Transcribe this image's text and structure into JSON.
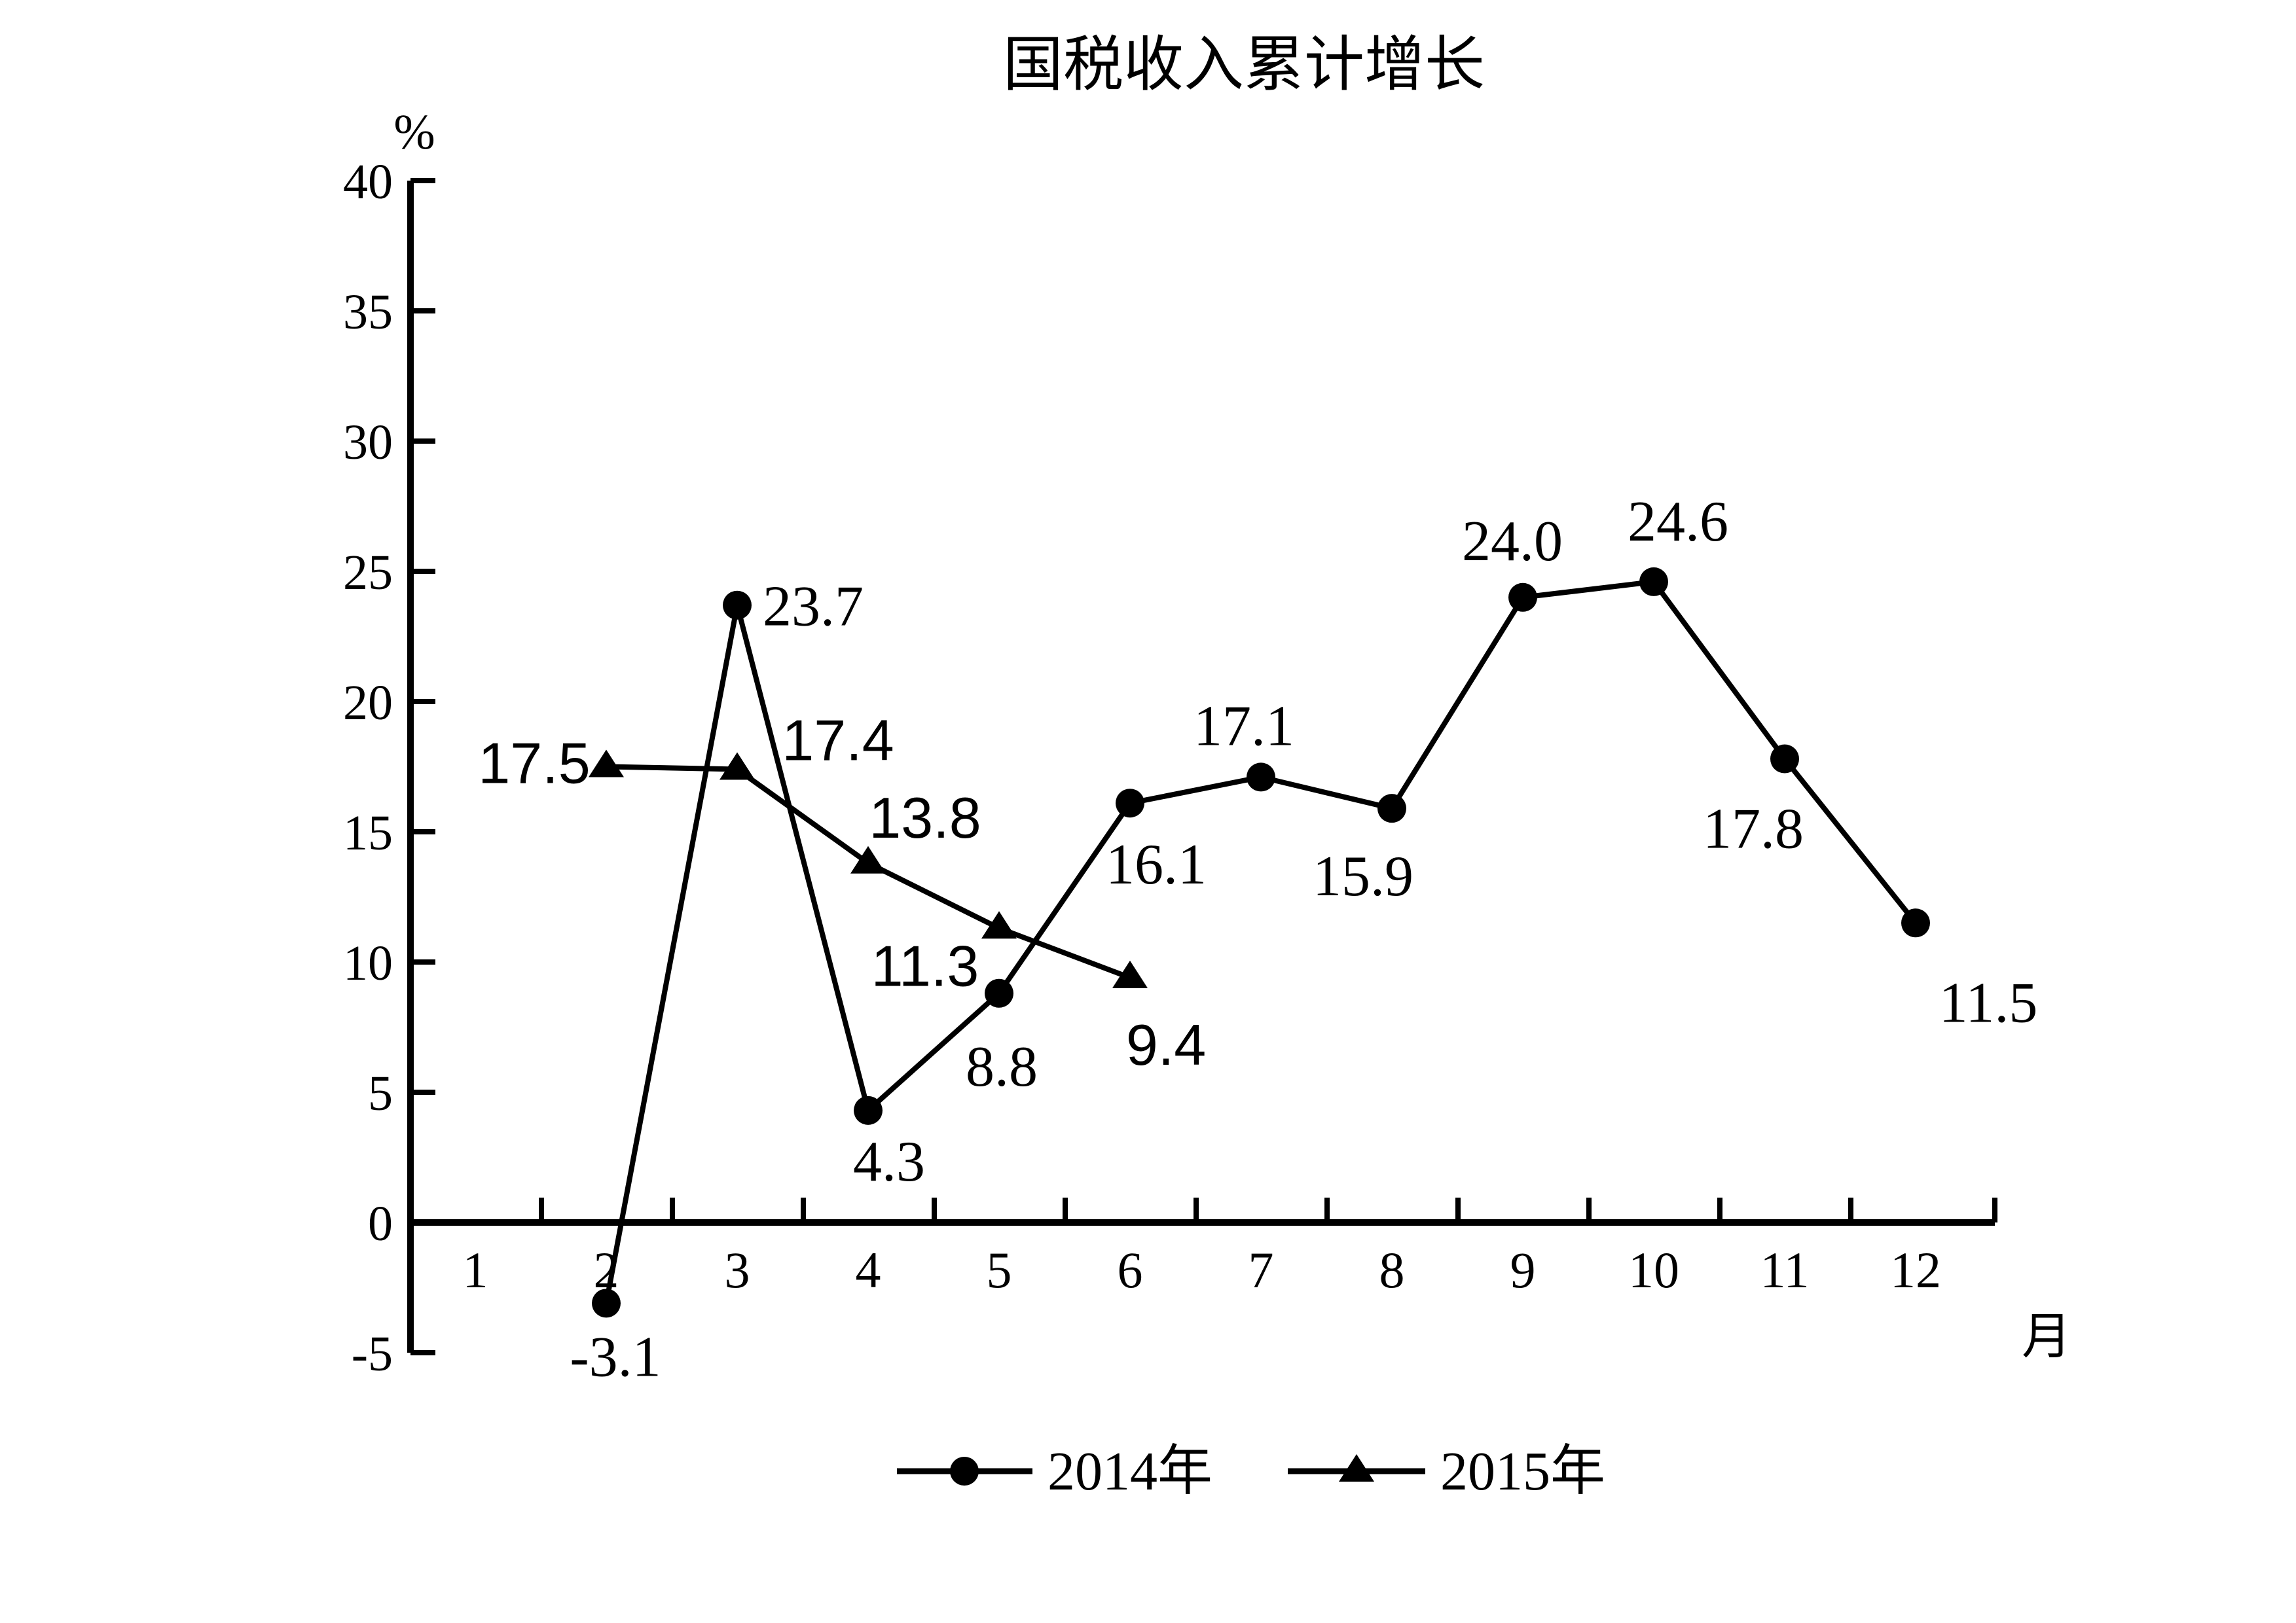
{
  "page": {
    "background": "#ffffff",
    "ink": "#000000"
  },
  "title": "国税收入累计增长",
  "axes": {
    "y_unit_label": "%",
    "x_unit_label": "月",
    "y_ticks": [
      40,
      35,
      30,
      25,
      20,
      15,
      10,
      5,
      0,
      -5
    ],
    "x_ticks": [
      1,
      2,
      3,
      4,
      5,
      6,
      7,
      8,
      9,
      10,
      11,
      12
    ]
  },
  "legend": {
    "items": [
      {
        "label": "2014年",
        "marker": "circle-icon"
      },
      {
        "label": "2015年",
        "marker": "triangle-icon"
      }
    ]
  },
  "chart_data": {
    "type": "line",
    "title": "国税收入累计增长",
    "xlabel": "月",
    "ylabel": "%",
    "ylim": [
      -5,
      40
    ],
    "x_range": [
      1,
      12
    ],
    "grid": false,
    "legend_position": "bottom-center",
    "x": [
      1,
      2,
      3,
      4,
      5,
      6,
      7,
      8,
      9,
      10,
      11,
      12
    ],
    "series": [
      {
        "name": "2014年",
        "marker": "circle",
        "label_font": "serif",
        "points": [
          {
            "month": 2,
            "value": -3.1,
            "label": "-3.1",
            "dx": 14,
            "dy": 80
          },
          {
            "month": 3,
            "value": 23.7,
            "label": "23.7",
            "dx": 116,
            "dy": 0
          },
          {
            "month": 4,
            "value": 4.3,
            "label": "4.3",
            "dx": 32,
            "dy": 76
          },
          {
            "month": 5,
            "value": 8.8,
            "label": "8.8",
            "dx": 4,
            "dy": 110
          },
          {
            "month": 6,
            "value": 16.1,
            "label": "16.1",
            "dx": 40,
            "dy": 92
          },
          {
            "month": 7,
            "value": 17.1,
            "label": "17.1",
            "dx": -26,
            "dy": -80
          },
          {
            "month": 8,
            "value": 15.9,
            "label": "15.9",
            "dx": -44,
            "dy": 102
          },
          {
            "month": 9,
            "value": 24.0,
            "label": "24.0",
            "dx": -16,
            "dy": -88
          },
          {
            "month": 10,
            "value": 24.6,
            "label": "24.6",
            "dx": 37,
            "dy": -94
          },
          {
            "month": 11,
            "value": 17.8,
            "label": "17.8",
            "dx": -48,
            "dy": 105
          },
          {
            "month": 12,
            "value": 11.5,
            "label": "11.5",
            "dx": 111,
            "dy": 120
          }
        ]
      },
      {
        "name": "2015年",
        "marker": "triangle",
        "label_font": "sans",
        "points": [
          {
            "month": 2,
            "value": 17.5,
            "label": "17.5",
            "dx": -110,
            "dy": -6
          },
          {
            "month": 3,
            "value": 17.4,
            "label": "17.4",
            "dx": 154,
            "dy": -45
          },
          {
            "month": 4,
            "value": 13.8,
            "label": "13.8",
            "dx": 87,
            "dy": -70
          },
          {
            "month": 5,
            "value": 11.3,
            "label": "11.3",
            "dx": -113,
            "dy": 57
          },
          {
            "month": 6,
            "value": 9.4,
            "label": "9.4",
            "dx": 55,
            "dy": 102
          }
        ]
      }
    ]
  }
}
